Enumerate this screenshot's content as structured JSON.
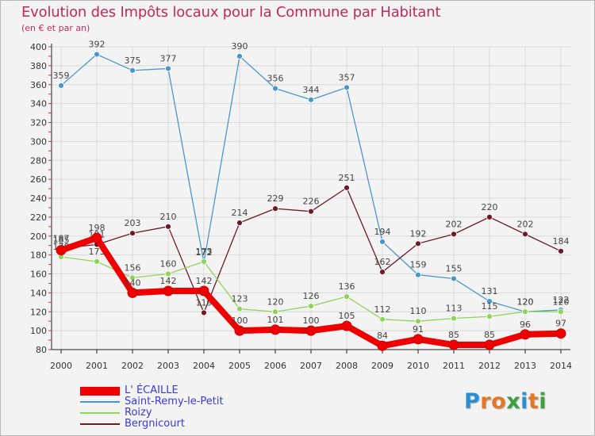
{
  "header": {
    "title": "Evolution des Impôts locaux pour la Commune par Habitant",
    "subtitle": "(en € et par an)"
  },
  "logo": {
    "text": "Proxiti",
    "letter_colors": [
      "#2a8fd0",
      "#e07828",
      "#e07828",
      "#3aa040",
      "#2a8fd0",
      "#e07828",
      "#3aa040"
    ]
  },
  "chart_data": {
    "type": "line",
    "title": "Evolution des Impôts locaux pour la Commune par Habitant",
    "subtitle": "(en € et par an)",
    "x": [
      "2000",
      "2001",
      "2002",
      "2003",
      "2004",
      "2005",
      "2006",
      "2007",
      "2008",
      "2009",
      "2010",
      "2011",
      "2012",
      "2013",
      "2014"
    ],
    "ylim": [
      80,
      400
    ],
    "yticks": [
      "80",
      "100",
      "120",
      "140",
      "160",
      "180",
      "200",
      "220",
      "240",
      "260",
      "280",
      "300",
      "320",
      "340",
      "360",
      "380",
      "400"
    ],
    "grid": true,
    "legend_position": "bottom-left",
    "series": [
      {
        "name": "Saint-Remy-le-Petit",
        "color": "#4a96cc",
        "values": [
          359,
          392,
          375,
          377,
          172,
          390,
          356,
          344,
          357,
          194,
          159,
          155,
          131,
          120,
          122
        ],
        "labels": [
          "359",
          "392",
          "375",
          "377",
          "172",
          "390",
          "356",
          "344",
          "357",
          "194",
          "159",
          "155",
          "131",
          "120",
          "122"
        ]
      },
      {
        "name": "Bergnicourt",
        "color": "#6b1a26",
        "values": [
          187,
          191,
          203,
          210,
          119,
          214,
          229,
          226,
          251,
          162,
          192,
          202,
          220,
          202,
          184
        ],
        "labels": [
          "187",
          "191",
          "203",
          "210",
          "119",
          "214",
          "229",
          "226",
          "251",
          "162",
          "192",
          "202",
          "220",
          "202",
          "184"
        ]
      },
      {
        "name": "Roizy",
        "color": "#8fd45a",
        "values": [
          178,
          173,
          156,
          160,
          173,
          123,
          120,
          126,
          136,
          112,
          110,
          113,
          115,
          120,
          120
        ],
        "labels": [
          "178",
          "173",
          "156",
          "160",
          "173",
          "123",
          "120",
          "126",
          "136",
          "112",
          "110",
          "113",
          "115",
          "120",
          "120"
        ]
      },
      {
        "name": "L' ÉCAILLE",
        "color": "#ee0000",
        "values": [
          185,
          198,
          140,
          142,
          142,
          100,
          101,
          100,
          105,
          84,
          91,
          85,
          85,
          96,
          97
        ],
        "labels": [
          "185",
          "198",
          "140",
          "142",
          "142",
          "100",
          "101",
          "100",
          "105",
          "84",
          "91",
          "85",
          "85",
          "96",
          "97"
        ]
      }
    ],
    "legend_order": [
      "L' ÉCAILLE",
      "Saint-Remy-le-Petit",
      "Roizy",
      "Bergnicourt"
    ]
  }
}
